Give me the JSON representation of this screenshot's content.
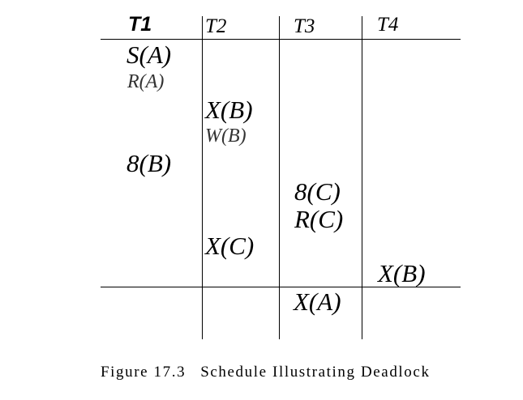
{
  "schedule": {
    "headers": [
      "T1",
      "T2",
      "T3",
      "T4"
    ],
    "operations": {
      "t1_sa": "S(A)",
      "t1_ra": "R(A)",
      "t2_xb": "X(B)",
      "t2_wb": "W(B)",
      "t1_sb": "8(B)",
      "t3_sc": "8(C)",
      "t3_rc": "R(C)",
      "t2_xc": "X(C)",
      "t4_xb": "X(B)",
      "t3_xa": "X(A)"
    }
  },
  "caption": {
    "number": "Figure 17.3",
    "text": "Schedule Illustrating Deadlock"
  }
}
